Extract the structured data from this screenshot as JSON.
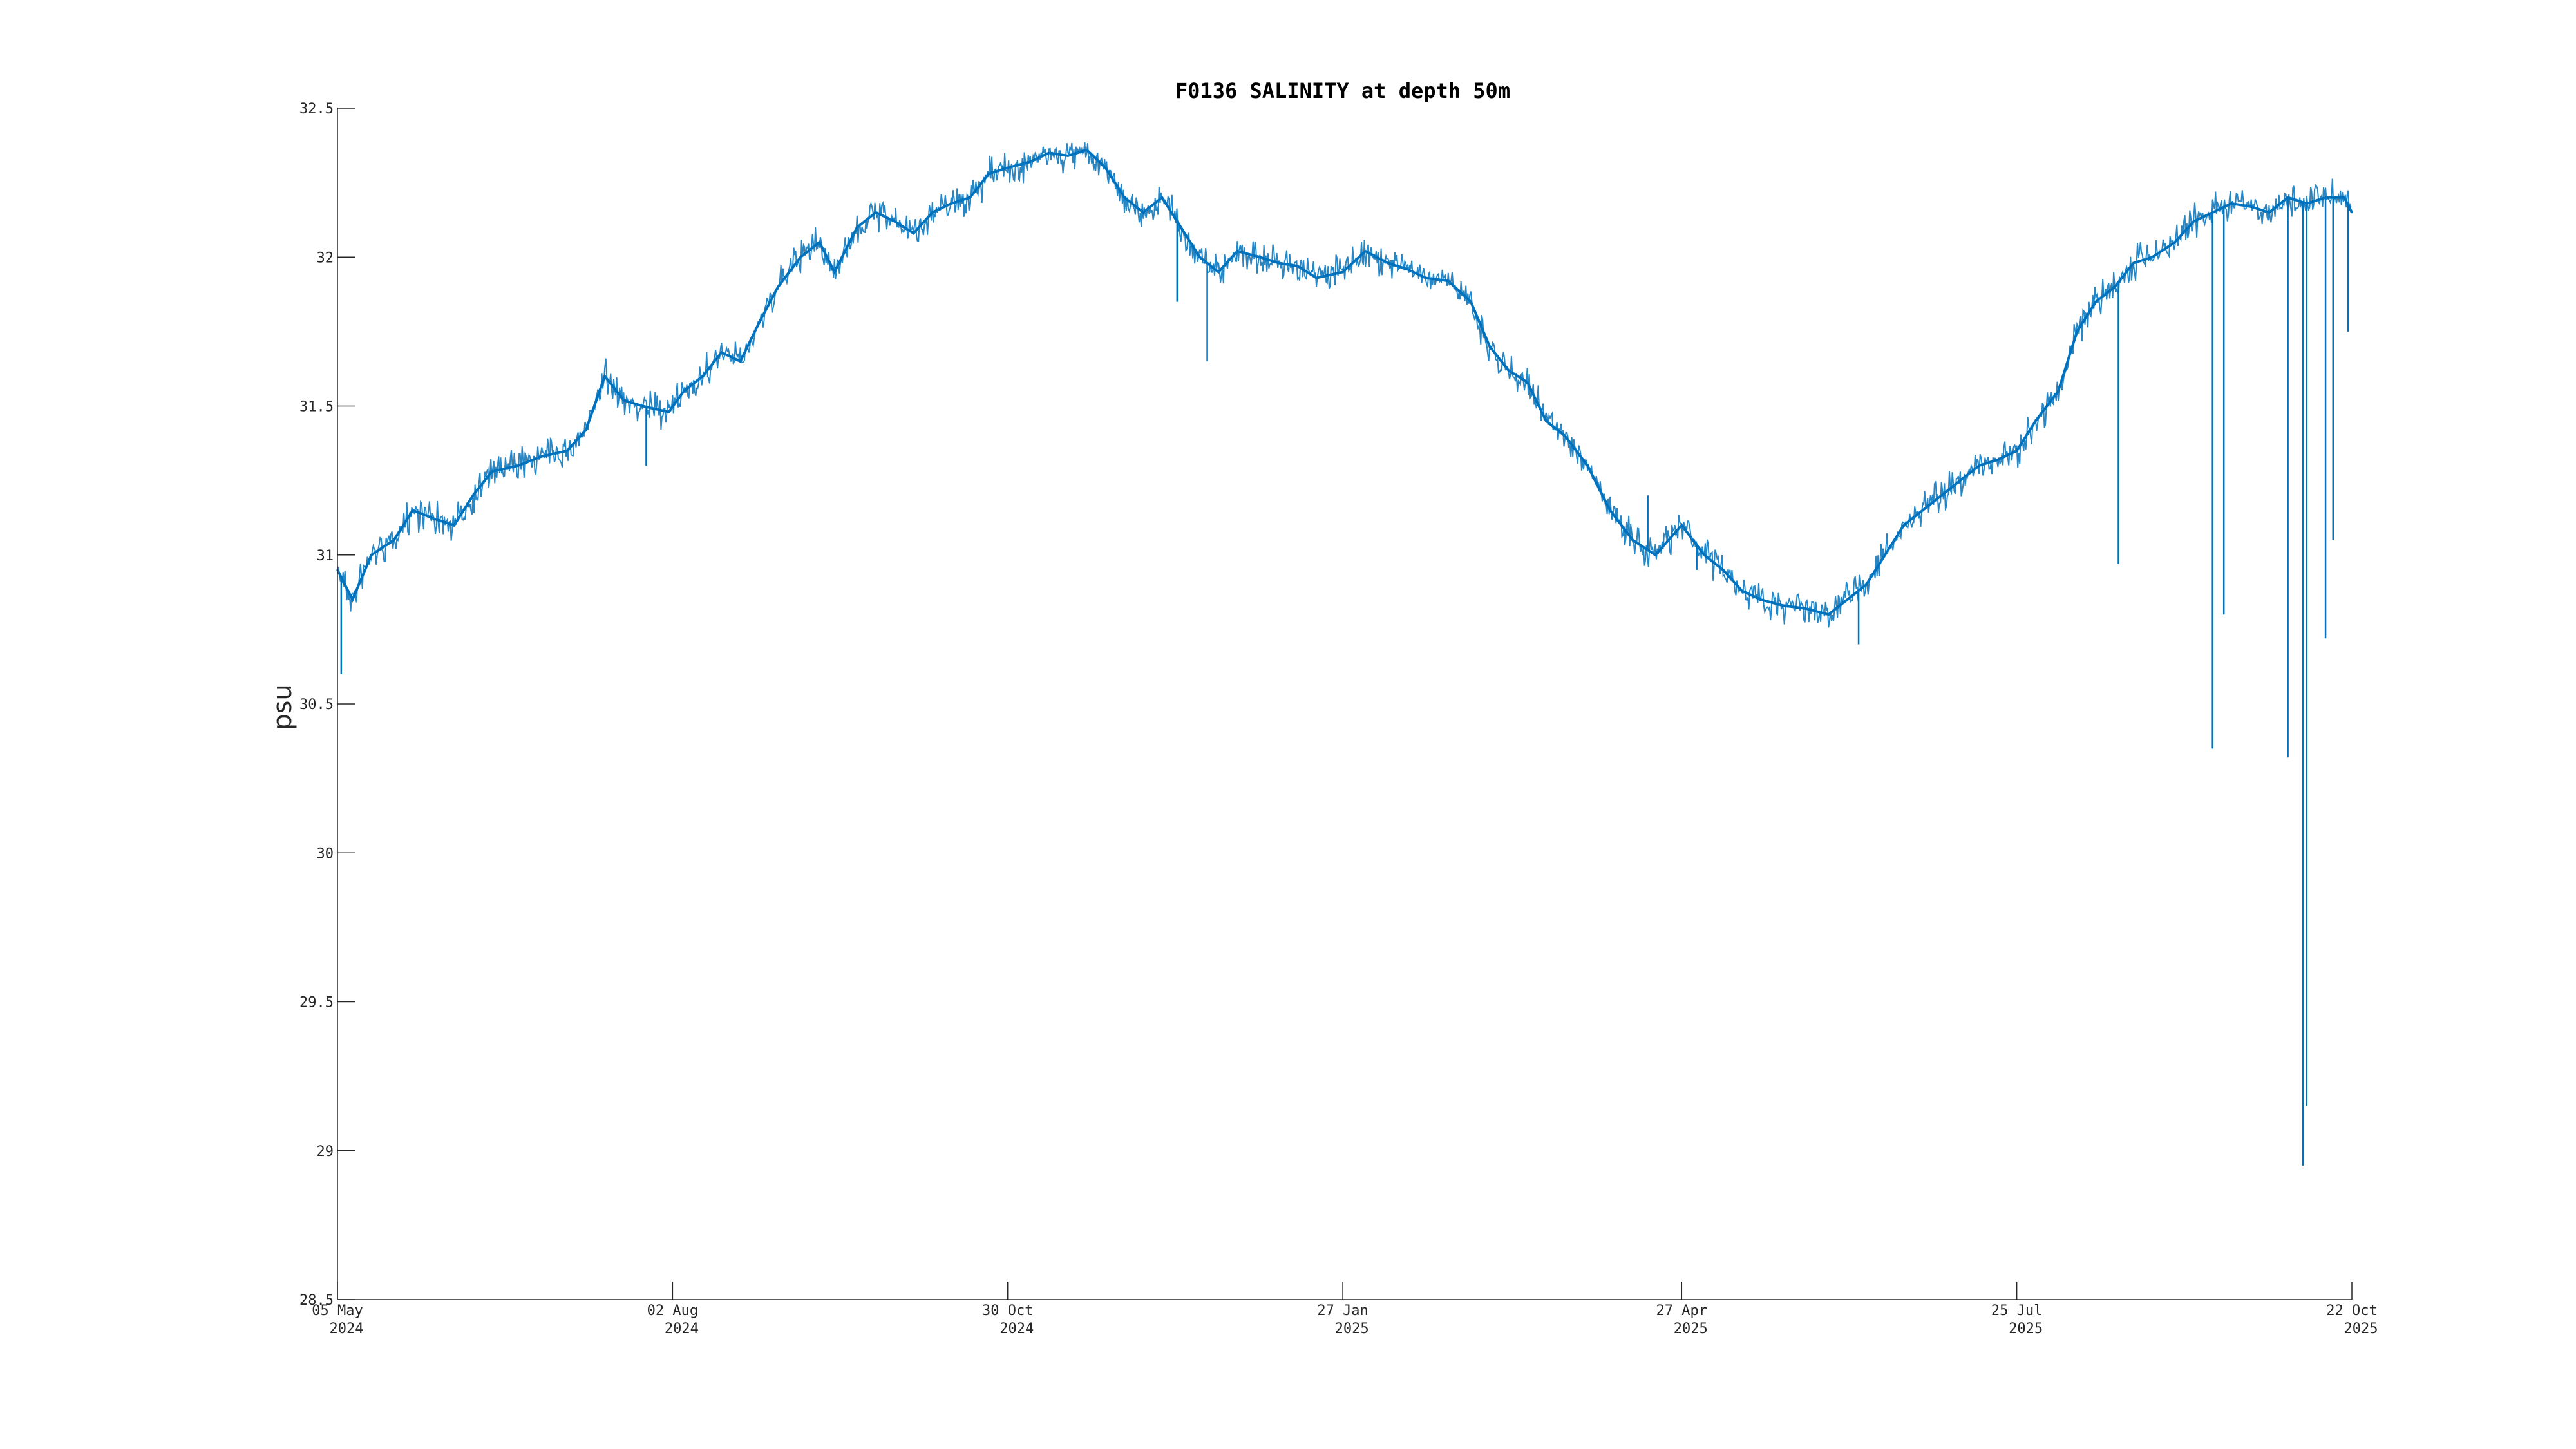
{
  "chart_data": {
    "type": "line",
    "title": "F0136 SALINITY at depth 50m",
    "xlabel": "",
    "ylabel": "psu",
    "ylim": [
      28.5,
      32.5
    ],
    "xlim": [
      "2024-05-05",
      "2025-10-22"
    ],
    "grid": false,
    "line_color": "#0072BD",
    "yticks": [
      {
        "value": 28.5,
        "label": "28.5"
      },
      {
        "value": 29,
        "label": "29"
      },
      {
        "value": 29.5,
        "label": "29.5"
      },
      {
        "value": 30,
        "label": "30"
      },
      {
        "value": 30.5,
        "label": "30.5"
      },
      {
        "value": 31,
        "label": "31"
      },
      {
        "value": 31.5,
        "label": "31.5"
      },
      {
        "value": 32,
        "label": "32"
      },
      {
        "value": 32.5,
        "label": "32.5"
      }
    ],
    "xticks": [
      {
        "date": "2024-05-05",
        "line1": "05 May",
        "line2": "2024"
      },
      {
        "date": "2024-08-02",
        "line1": "02 Aug",
        "line2": "2024"
      },
      {
        "date": "2024-10-30",
        "line1": "30 Oct",
        "line2": "2024"
      },
      {
        "date": "2025-01-27",
        "line1": "27 Jan",
        "line2": "2025"
      },
      {
        "date": "2025-04-27",
        "line1": "27 Apr",
        "line2": "2025"
      },
      {
        "date": "2025-07-25",
        "line1": "25 Jul",
        "line2": "2025"
      },
      {
        "date": "2025-10-22",
        "line1": "22 Oct",
        "line2": "2025"
      }
    ],
    "series": [
      {
        "x": [
          "2024-05-05",
          "2024-05-09",
          "2024-05-14",
          "2024-05-20",
          "2024-05-25",
          "2024-05-31",
          "2024-06-05",
          "2024-06-10",
          "2024-06-15",
          "2024-06-22",
          "2024-06-28",
          "2024-07-05",
          "2024-07-10",
          "2024-07-15",
          "2024-07-20",
          "2024-07-25",
          "2024-08-01",
          "2024-08-05",
          "2024-08-10",
          "2024-08-15",
          "2024-08-20",
          "2024-08-25",
          "2024-08-30",
          "2024-09-05",
          "2024-09-10",
          "2024-09-14",
          "2024-09-20",
          "2024-09-25",
          "2024-09-30",
          "2024-10-05",
          "2024-10-10",
          "2024-10-15",
          "2024-10-20",
          "2024-10-25",
          "2024-10-30",
          "2024-11-05",
          "2024-11-10",
          "2024-11-15",
          "2024-11-20",
          "2024-11-25",
          "2024-11-30",
          "2024-12-05",
          "2024-12-10",
          "2024-12-15",
          "2024-12-20",
          "2024-12-25",
          "2024-12-30",
          "2025-01-05",
          "2025-01-10",
          "2025-01-15",
          "2025-01-20",
          "2025-01-27",
          "2025-02-02",
          "2025-02-08",
          "2025-02-13",
          "2025-02-18",
          "2025-02-24",
          "2025-03-02",
          "2025-03-07",
          "2025-03-12",
          "2025-03-17",
          "2025-03-22",
          "2025-03-27",
          "2025-04-02",
          "2025-04-08",
          "2025-04-14",
          "2025-04-20",
          "2025-04-27",
          "2025-05-03",
          "2025-05-08",
          "2025-05-13",
          "2025-05-18",
          "2025-05-24",
          "2025-05-30",
          "2025-06-05",
          "2025-06-10",
          "2025-06-15",
          "2025-06-20",
          "2025-06-25",
          "2025-06-30",
          "2025-07-05",
          "2025-07-10",
          "2025-07-15",
          "2025-07-20",
          "2025-07-25",
          "2025-07-30",
          "2025-08-05",
          "2025-08-10",
          "2025-08-15",
          "2025-08-20",
          "2025-08-25",
          "2025-08-30",
          "2025-09-05",
          "2025-09-10",
          "2025-09-15",
          "2025-09-20",
          "2025-09-25",
          "2025-09-30",
          "2025-10-05",
          "2025-10-10",
          "2025-10-15",
          "2025-10-20",
          "2025-10-22"
        ],
        "y": [
          30.95,
          30.85,
          31.0,
          31.05,
          31.15,
          31.12,
          31.1,
          31.2,
          31.28,
          31.3,
          31.33,
          31.35,
          31.42,
          31.6,
          31.52,
          31.5,
          31.48,
          31.55,
          31.6,
          31.68,
          31.65,
          31.78,
          31.9,
          32.0,
          32.05,
          31.95,
          32.1,
          32.15,
          32.12,
          32.08,
          32.15,
          32.18,
          32.2,
          32.28,
          32.3,
          32.32,
          32.35,
          32.34,
          32.36,
          32.3,
          32.2,
          32.15,
          32.2,
          32.1,
          32.0,
          31.95,
          32.02,
          32.0,
          31.98,
          31.97,
          31.93,
          31.95,
          32.02,
          31.98,
          31.96,
          31.93,
          31.92,
          31.85,
          31.7,
          31.62,
          31.58,
          31.45,
          31.4,
          31.3,
          31.15,
          31.05,
          31.0,
          31.1,
          31.0,
          30.95,
          30.88,
          30.85,
          30.83,
          30.82,
          30.8,
          30.85,
          30.9,
          31.0,
          31.1,
          31.15,
          31.2,
          31.25,
          31.3,
          31.32,
          31.35,
          31.45,
          31.55,
          31.75,
          31.85,
          31.9,
          31.98,
          32.0,
          32.05,
          32.12,
          32.15,
          32.18,
          32.17,
          32.15,
          32.2,
          32.18,
          32.2,
          32.2,
          32.15
        ]
      }
    ],
    "spikes": [
      {
        "x": "2024-05-06",
        "y": 30.6
      },
      {
        "x": "2024-07-26",
        "y": 31.3
      },
      {
        "x": "2024-12-14",
        "y": 31.85
      },
      {
        "x": "2024-12-22",
        "y": 31.65
      },
      {
        "x": "2025-04-18",
        "y": 31.2
      },
      {
        "x": "2025-05-01",
        "y": 30.95
      },
      {
        "x": "2025-06-13",
        "y": 30.7
      },
      {
        "x": "2025-08-21",
        "y": 30.97
      },
      {
        "x": "2025-09-15",
        "y": 30.35
      },
      {
        "x": "2025-09-18",
        "y": 30.8
      },
      {
        "x": "2025-10-05",
        "y": 30.32
      },
      {
        "x": "2025-10-09",
        "y": 28.95
      },
      {
        "x": "2025-10-10",
        "y": 29.15
      },
      {
        "x": "2025-10-15",
        "y": 30.72
      },
      {
        "x": "2025-10-17",
        "y": 31.05
      },
      {
        "x": "2025-10-21",
        "y": 31.75
      }
    ]
  }
}
